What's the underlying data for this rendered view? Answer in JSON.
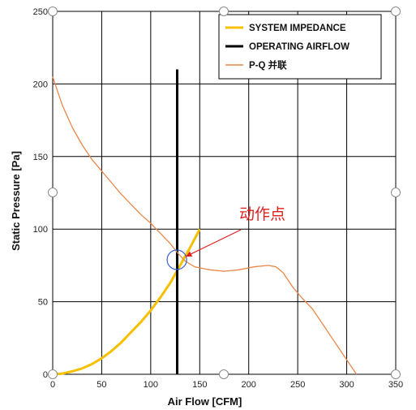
{
  "chart_data": {
    "type": "line",
    "xlabel": "Air Flow [CFM]",
    "ylabel": "Static Pressure [Pa]",
    "xlim": [
      0,
      350
    ],
    "ylim": [
      0,
      250
    ],
    "x_ticks": [
      0,
      50,
      100,
      150,
      200,
      250,
      300,
      350
    ],
    "y_ticks": [
      0,
      50,
      100,
      150,
      200,
      250
    ],
    "grid": true,
    "legend_position": "top-right",
    "series": [
      {
        "name": "SYSTEM IMPEDANCE",
        "color": "#f5c000",
        "points": [
          [
            0,
            0
          ],
          [
            10,
            0.5
          ],
          [
            20,
            2
          ],
          [
            30,
            4
          ],
          [
            40,
            7
          ],
          [
            50,
            11
          ],
          [
            60,
            16
          ],
          [
            70,
            22
          ],
          [
            80,
            29
          ],
          [
            90,
            36
          ],
          [
            100,
            44
          ],
          [
            110,
            53
          ],
          [
            120,
            63
          ],
          [
            130,
            75
          ],
          [
            140,
            87
          ],
          [
            150,
            100
          ]
        ]
      },
      {
        "name": "OPERATING AIRFLOW",
        "color": "#000000",
        "points": [
          [
            127,
            0
          ],
          [
            127,
            210
          ]
        ]
      },
      {
        "name": "P-Q 并联",
        "color": "#e8884a",
        "points": [
          [
            0,
            205
          ],
          [
            5,
            195
          ],
          [
            10,
            185
          ],
          [
            20,
            170
          ],
          [
            30,
            158
          ],
          [
            40,
            148
          ],
          [
            50,
            140
          ],
          [
            60,
            132
          ],
          [
            70,
            124
          ],
          [
            80,
            117
          ],
          [
            90,
            110
          ],
          [
            100,
            104
          ],
          [
            110,
            97
          ],
          [
            120,
            90
          ],
          [
            127,
            84
          ],
          [
            135,
            78
          ],
          [
            145,
            74
          ],
          [
            160,
            72
          ],
          [
            175,
            71
          ],
          [
            190,
            72
          ],
          [
            205,
            74
          ],
          [
            220,
            75
          ],
          [
            228,
            74
          ],
          [
            235,
            70
          ],
          [
            245,
            60
          ],
          [
            255,
            52
          ],
          [
            265,
            45
          ],
          [
            275,
            35
          ],
          [
            285,
            25
          ],
          [
            295,
            15
          ],
          [
            305,
            5
          ],
          [
            310,
            0
          ]
        ]
      }
    ],
    "annotation": {
      "text": "动作点",
      "target": [
        130,
        80
      ]
    }
  }
}
